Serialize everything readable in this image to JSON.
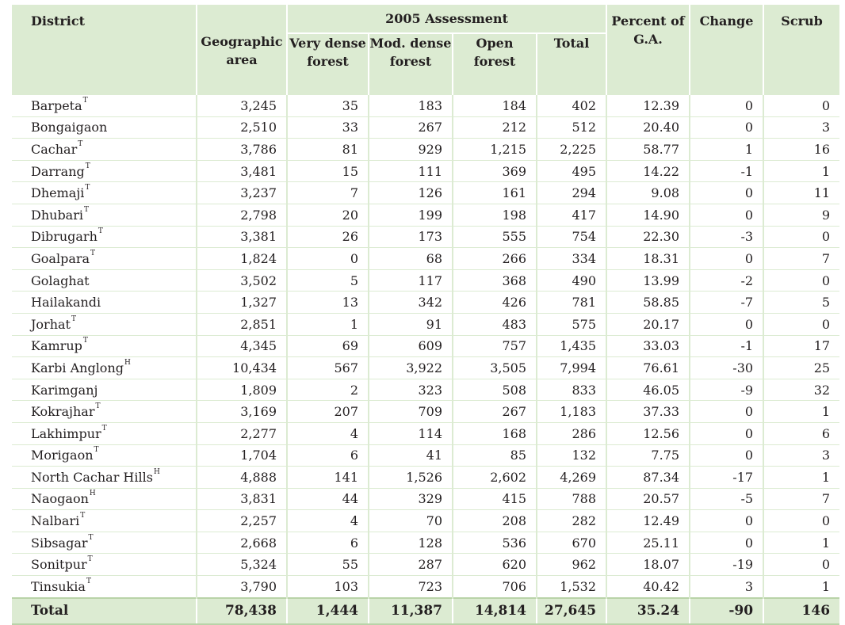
{
  "header": {
    "district": "District",
    "geographic_area": "Geographic area",
    "assessment_group": "2005 Assessment",
    "very_dense": "Very dense forest",
    "mod_dense": "Mod. dense forest",
    "open_forest": "Open forest",
    "total": "Total",
    "percent": "Percent of G.A.",
    "change": "Change",
    "scrub": "Scrub"
  },
  "rows": [
    {
      "district": "Barpeta",
      "sup": "T",
      "ga": "3,245",
      "vd": "35",
      "md": "183",
      "of": "184",
      "total": "402",
      "pct": "12.39",
      "change": "0",
      "scrub": "0"
    },
    {
      "district": "Bongaigaon",
      "sup": "",
      "ga": "2,510",
      "vd": "33",
      "md": "267",
      "of": "212",
      "total": "512",
      "pct": "20.40",
      "change": "0",
      "scrub": "3"
    },
    {
      "district": "Cachar",
      "sup": "T",
      "ga": "3,786",
      "vd": "81",
      "md": "929",
      "of": "1,215",
      "total": "2,225",
      "pct": "58.77",
      "change": "1",
      "scrub": "16"
    },
    {
      "district": "Darrang",
      "sup": "T",
      "ga": "3,481",
      "vd": "15",
      "md": "111",
      "of": "369",
      "total": "495",
      "pct": "14.22",
      "change": "-1",
      "scrub": "1"
    },
    {
      "district": "Dhemaji",
      "sup": "T",
      "ga": "3,237",
      "vd": "7",
      "md": "126",
      "of": "161",
      "total": "294",
      "pct": "9.08",
      "change": "0",
      "scrub": "11"
    },
    {
      "district": "Dhubari",
      "sup": "T",
      "ga": "2,798",
      "vd": "20",
      "md": "199",
      "of": "198",
      "total": "417",
      "pct": "14.90",
      "change": "0",
      "scrub": "9"
    },
    {
      "district": "Dibrugarh",
      "sup": "T",
      "ga": "3,381",
      "vd": "26",
      "md": "173",
      "of": "555",
      "total": "754",
      "pct": "22.30",
      "change": "-3",
      "scrub": "0"
    },
    {
      "district": "Goalpara",
      "sup": "T",
      "ga": "1,824",
      "vd": "0",
      "md": "68",
      "of": "266",
      "total": "334",
      "pct": "18.31",
      "change": "0",
      "scrub": "7"
    },
    {
      "district": "Golaghat",
      "sup": "",
      "ga": "3,502",
      "vd": "5",
      "md": "117",
      "of": "368",
      "total": "490",
      "pct": "13.99",
      "change": "-2",
      "scrub": "0"
    },
    {
      "district": "Hailakandi",
      "sup": "",
      "ga": "1,327",
      "vd": "13",
      "md": "342",
      "of": "426",
      "total": "781",
      "pct": "58.85",
      "change": "-7",
      "scrub": "5"
    },
    {
      "district": "Jorhat",
      "sup": "T",
      "ga": "2,851",
      "vd": "1",
      "md": "91",
      "of": "483",
      "total": "575",
      "pct": "20.17",
      "change": "0",
      "scrub": "0"
    },
    {
      "district": "Kamrup",
      "sup": "T",
      "ga": "4,345",
      "vd": "69",
      "md": "609",
      "of": "757",
      "total": "1,435",
      "pct": "33.03",
      "change": "-1",
      "scrub": "17"
    },
    {
      "district": "Karbi Anglong",
      "sup": "H",
      "ga": "10,434",
      "vd": "567",
      "md": "3,922",
      "of": "3,505",
      "total": "7,994",
      "pct": "76.61",
      "change": "-30",
      "scrub": "25"
    },
    {
      "district": "Karimganj",
      "sup": "",
      "ga": "1,809",
      "vd": "2",
      "md": "323",
      "of": "508",
      "total": "833",
      "pct": "46.05",
      "change": "-9",
      "scrub": "32"
    },
    {
      "district": "Kokrajhar",
      "sup": "T",
      "ga": "3,169",
      "vd": "207",
      "md": "709",
      "of": "267",
      "total": "1,183",
      "pct": "37.33",
      "change": "0",
      "scrub": "1"
    },
    {
      "district": "Lakhimpur",
      "sup": "T",
      "ga": "2,277",
      "vd": "4",
      "md": "114",
      "of": "168",
      "total": "286",
      "pct": "12.56",
      "change": "0",
      "scrub": "6"
    },
    {
      "district": "Morigaon",
      "sup": "T",
      "ga": "1,704",
      "vd": "6",
      "md": "41",
      "of": "85",
      "total": "132",
      "pct": "7.75",
      "change": "0",
      "scrub": "3"
    },
    {
      "district": "North Cachar Hills",
      "sup": "H",
      "ga": "4,888",
      "vd": "141",
      "md": "1,526",
      "of": "2,602",
      "total": "4,269",
      "pct": "87.34",
      "change": "-17",
      "scrub": "1"
    },
    {
      "district": "Naogaon",
      "sup": "H",
      "ga": "3,831",
      "vd": "44",
      "md": "329",
      "of": "415",
      "total": "788",
      "pct": "20.57",
      "change": "-5",
      "scrub": "7"
    },
    {
      "district": "Nalbari",
      "sup": "T",
      "ga": "2,257",
      "vd": "4",
      "md": "70",
      "of": "208",
      "total": "282",
      "pct": "12.49",
      "change": "0",
      "scrub": "0"
    },
    {
      "district": "Sibsagar",
      "sup": "T",
      "ga": "2,668",
      "vd": "6",
      "md": "128",
      "of": "536",
      "total": "670",
      "pct": "25.11",
      "change": "0",
      "scrub": "1"
    },
    {
      "district": "Sonitpur",
      "sup": "T",
      "ga": "5,324",
      "vd": "55",
      "md": "287",
      "of": "620",
      "total": "962",
      "pct": "18.07",
      "change": "-19",
      "scrub": "0"
    },
    {
      "district": "Tinsukia",
      "sup": "T",
      "ga": "3,790",
      "vd": "103",
      "md": "723",
      "of": "706",
      "total": "1,532",
      "pct": "40.42",
      "change": "3",
      "scrub": "1"
    }
  ],
  "totals": {
    "label": "Total",
    "ga": "78,438",
    "vd": "1,444",
    "md": "11,387",
    "of": "14,814",
    "total": "27,645",
    "pct": "35.24",
    "change": "-90",
    "scrub": "146"
  },
  "colors": {
    "header_bg": "#dcebd2",
    "rule": "#dcebd2",
    "text": "#231f20"
  }
}
